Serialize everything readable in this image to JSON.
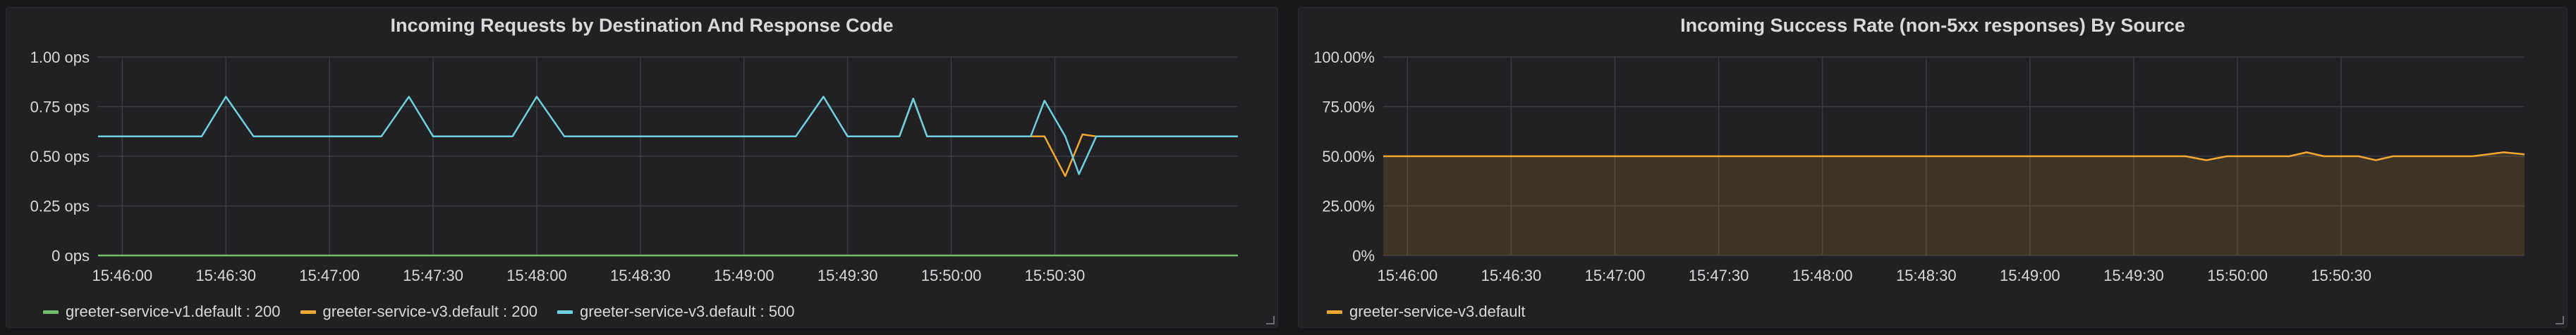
{
  "panels": [
    {
      "title": "Incoming Requests by Destination And Response Code",
      "legend": [
        {
          "label": "greeter-service-v1.default : 200",
          "color": "#73bf69"
        },
        {
          "label": "greeter-service-v3.default : 200",
          "color": "#f2a832"
        },
        {
          "label": "greeter-service-v3.default : 500",
          "color": "#6ed0e0"
        }
      ]
    },
    {
      "title": "Incoming Success Rate (non-5xx responses) By Source",
      "legend": [
        {
          "label": "greeter-service-v3.default",
          "color": "#f2a832"
        }
      ]
    }
  ],
  "chart_data": [
    {
      "type": "line",
      "title": "Incoming Requests by Destination And Response Code",
      "y_unit": "ops",
      "ylim": [
        0,
        1
      ],
      "yticks": [
        "0 ops",
        "0.25 ops",
        "0.50 ops",
        "0.75 ops",
        "1.00 ops"
      ],
      "ytick_values": [
        0,
        0.25,
        0.5,
        0.75,
        1
      ],
      "xlim": [
        "15:45:53",
        "15:51:23"
      ],
      "xticks": [
        "15:46:00",
        "15:46:30",
        "15:47:00",
        "15:47:30",
        "15:48:00",
        "15:48:30",
        "15:49:00",
        "15:49:30",
        "15:50:00",
        "15:50:30"
      ],
      "grid": true,
      "legend_position": "bottom",
      "series": [
        {
          "name": "greeter-service-v1.default : 200",
          "color": "#73bf69",
          "x": [
            "15:45:53",
            "15:51:23"
          ],
          "y": [
            0,
            0
          ]
        },
        {
          "name": "greeter-service-v3.default : 200",
          "color": "#f2a832",
          "x": [
            "15:49:38",
            "15:49:45",
            "15:49:49",
            "15:49:53",
            "15:49:57",
            "15:50:27",
            "15:50:33",
            "15:50:38",
            "15:50:42",
            "15:50:47",
            "15:51:23"
          ],
          "y": [
            0.6,
            0.6,
            0.79,
            0.6,
            0.6,
            0.6,
            0.4,
            0.61,
            0.6,
            0.6,
            0.6
          ]
        },
        {
          "name": "greeter-service-v3.default : 500",
          "color": "#6ed0e0",
          "x": [
            "15:45:53",
            "15:46:00",
            "15:46:08",
            "15:46:15",
            "15:46:23",
            "15:46:30",
            "15:46:38",
            "15:46:46",
            "15:46:53",
            "15:47:00",
            "15:47:08",
            "15:47:15",
            "15:47:23",
            "15:47:30",
            "15:47:38",
            "15:47:45",
            "15:47:53",
            "15:48:00",
            "15:48:08",
            "15:48:15",
            "15:48:23",
            "15:48:30",
            "15:48:38",
            "15:48:46",
            "15:48:53",
            "15:49:00",
            "15:49:08",
            "15:49:15",
            "15:49:23",
            "15:49:30",
            "15:49:38",
            "15:49:45",
            "15:49:49",
            "15:49:53",
            "15:50:00",
            "15:50:08",
            "15:50:15",
            "15:50:23",
            "15:50:27",
            "15:50:33",
            "15:50:37",
            "15:50:42",
            "15:50:46",
            "15:50:53",
            "15:51:00",
            "15:51:08",
            "15:51:15",
            "15:51:23"
          ],
          "y": [
            0.6,
            0.6,
            0.6,
            0.6,
            0.6,
            0.8,
            0.6,
            0.6,
            0.6,
            0.6,
            0.6,
            0.6,
            0.8,
            0.6,
            0.6,
            0.6,
            0.6,
            0.8,
            0.6,
            0.6,
            0.6,
            0.6,
            0.6,
            0.6,
            0.6,
            0.6,
            0.6,
            0.6,
            0.8,
            0.6,
            0.6,
            0.6,
            0.79,
            0.6,
            0.6,
            0.6,
            0.6,
            0.6,
            0.78,
            0.6,
            0.41,
            0.6,
            0.6,
            0.6,
            0.6,
            0.6,
            0.6,
            0.6
          ]
        }
      ]
    },
    {
      "type": "area",
      "title": "Incoming Success Rate (non-5xx responses) By Source",
      "y_unit": "%",
      "ylim": [
        0,
        100
      ],
      "yticks": [
        "0%",
        "25.00%",
        "50.00%",
        "75.00%",
        "100.00%"
      ],
      "ytick_values": [
        0,
        25,
        50,
        75,
        100
      ],
      "xlim": [
        "15:45:53",
        "15:51:23"
      ],
      "xticks": [
        "15:46:00",
        "15:46:30",
        "15:47:00",
        "15:47:30",
        "15:48:00",
        "15:48:30",
        "15:49:00",
        "15:49:30",
        "15:50:00",
        "15:50:30"
      ],
      "grid": true,
      "legend_position": "bottom",
      "series": [
        {
          "name": "greeter-service-v3.default",
          "color": "#f2a832",
          "x": [
            "15:45:53",
            "15:49:45",
            "15:49:51",
            "15:49:57",
            "15:50:15",
            "15:50:20",
            "15:50:25",
            "15:50:35",
            "15:50:40",
            "15:50:45",
            "15:51:08",
            "15:51:17",
            "15:51:23"
          ],
          "y": [
            50,
            50,
            48,
            50,
            50,
            52,
            50,
            50,
            48,
            50,
            50,
            52,
            51
          ]
        }
      ]
    }
  ]
}
